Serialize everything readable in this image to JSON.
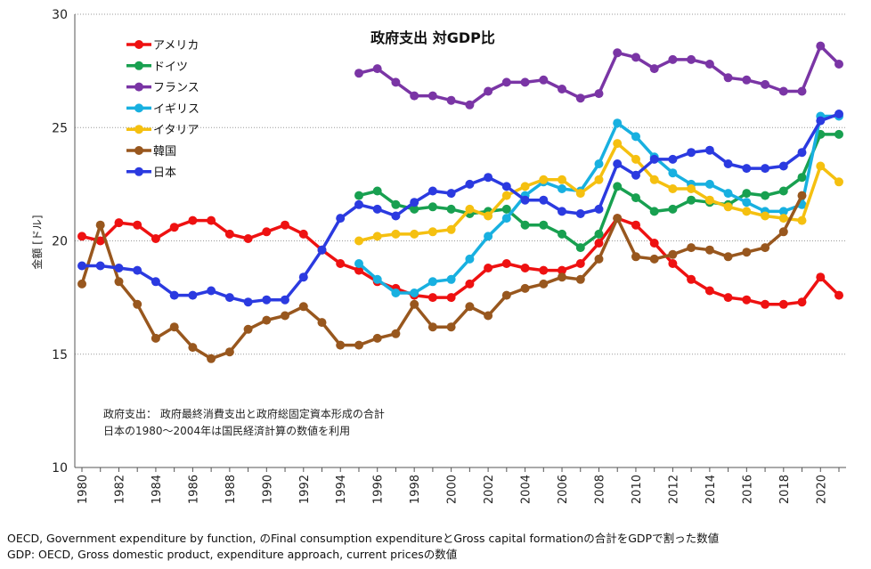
{
  "chart_data": {
    "type": "line",
    "title": "政府支出 対GDP比",
    "ylabel": "金額 [ドル]",
    "xlabel": "",
    "ylim": [
      10,
      30
    ],
    "yticks": [
      10,
      15,
      20,
      25,
      30
    ],
    "xlim": [
      1980,
      2021
    ],
    "xticks": [
      1980,
      1982,
      1984,
      1986,
      1988,
      1990,
      1992,
      1994,
      1996,
      1998,
      2000,
      2002,
      2004,
      2006,
      2008,
      2010,
      2012,
      2014,
      2016,
      2018,
      2020
    ],
    "grid": "horizontal",
    "legend_position": "top-left",
    "notes": [
      "政府支出： 政府最終消費支出と政府総固定資本形成の合計",
      "日本の1980～2004年は国民経済計算の数値を利用"
    ],
    "series": [
      {
        "name": "アメリカ",
        "color": "#ee1111",
        "x_start": 1980,
        "values": [
          20.2,
          20.0,
          20.8,
          20.7,
          20.1,
          20.6,
          20.9,
          20.9,
          20.3,
          20.1,
          20.4,
          20.7,
          20.3,
          19.6,
          19.0,
          18.7,
          18.2,
          17.9,
          17.6,
          17.5,
          17.5,
          18.1,
          18.8,
          19.0,
          18.8,
          18.7,
          18.7,
          19.0,
          19.9,
          21.0,
          20.7,
          19.9,
          19.0,
          18.3,
          17.8,
          17.5,
          17.4,
          17.2,
          17.2,
          17.3,
          18.4,
          17.6
        ]
      },
      {
        "name": "ドイツ",
        "color": "#18a050",
        "x_start": 1995,
        "values": [
          22.0,
          22.2,
          21.6,
          21.4,
          21.5,
          21.4,
          21.2,
          21.3,
          21.4,
          20.7,
          20.7,
          20.3,
          19.7,
          20.3,
          22.4,
          21.9,
          21.3,
          21.4,
          21.8,
          21.7,
          21.6,
          22.1,
          22.0,
          22.2,
          22.8,
          24.7,
          24.7
        ]
      },
      {
        "name": "フランス",
        "color": "#7a35a5",
        "x_start": 1995,
        "values": [
          27.4,
          27.6,
          27.0,
          26.4,
          26.4,
          26.2,
          26.0,
          26.6,
          27.0,
          27.0,
          27.1,
          26.7,
          26.3,
          26.5,
          28.3,
          28.1,
          27.6,
          28.0,
          28.0,
          27.8,
          27.2,
          27.1,
          26.9,
          26.6,
          26.6,
          28.6,
          27.8
        ]
      },
      {
        "name": "イギリス",
        "color": "#18b0e0",
        "x_start": 1995,
        "values": [
          19.0,
          18.3,
          17.7,
          17.7,
          18.2,
          18.3,
          19.2,
          20.2,
          21.0,
          22.0,
          22.6,
          22.3,
          22.2,
          23.4,
          25.2,
          24.6,
          23.7,
          23.0,
          22.5,
          22.5,
          22.1,
          21.7,
          21.3,
          21.3,
          21.6,
          25.5,
          25.5
        ]
      },
      {
        "name": "イタリア",
        "color": "#f5c010",
        "x_start": 1995,
        "values": [
          20.0,
          20.2,
          20.3,
          20.3,
          20.4,
          20.5,
          21.4,
          21.1,
          22.0,
          22.4,
          22.7,
          22.7,
          22.1,
          22.7,
          24.3,
          23.6,
          22.7,
          22.3,
          22.3,
          21.8,
          21.5,
          21.3,
          21.1,
          21.0,
          20.9,
          23.3,
          22.6
        ]
      },
      {
        "name": "韓国",
        "color": "#98571e",
        "x_start": 1980,
        "values": [
          18.1,
          20.7,
          18.2,
          17.2,
          15.7,
          16.2,
          15.3,
          14.8,
          15.1,
          16.1,
          16.5,
          16.7,
          17.1,
          16.4,
          15.4,
          15.4,
          15.7,
          15.9,
          17.2,
          16.2,
          16.2,
          17.1,
          16.7,
          17.6,
          17.9,
          18.1,
          18.4,
          18.3,
          19.2,
          21.0,
          19.3,
          19.2,
          19.4,
          19.7,
          19.6,
          19.3,
          19.5,
          19.7,
          20.4,
          22.0
        ]
      },
      {
        "name": "日本",
        "color": "#2b3ae0",
        "x_start": 1980,
        "values": [
          18.9,
          18.9,
          18.8,
          18.7,
          18.2,
          17.6,
          17.6,
          17.8,
          17.5,
          17.3,
          17.4,
          17.4,
          18.4,
          19.6,
          21.0,
          21.6,
          21.4,
          21.1,
          21.7,
          22.2,
          22.1,
          22.5,
          22.8,
          22.4,
          21.8,
          21.8,
          21.3,
          21.2,
          21.4,
          23.4,
          22.9,
          23.6,
          23.6,
          23.9,
          24.0,
          23.4,
          23.2,
          23.2,
          23.3,
          23.9,
          25.3,
          25.6
        ]
      }
    ]
  },
  "footer": {
    "source_line1": "OECD, Government expenditure by function, のFinal consumption expenditureとGross capital formationの合計をGDPで割った数値",
    "source_line2": "GDP: OECD, Gross domestic product, expenditure approach, current pricesの数値"
  }
}
